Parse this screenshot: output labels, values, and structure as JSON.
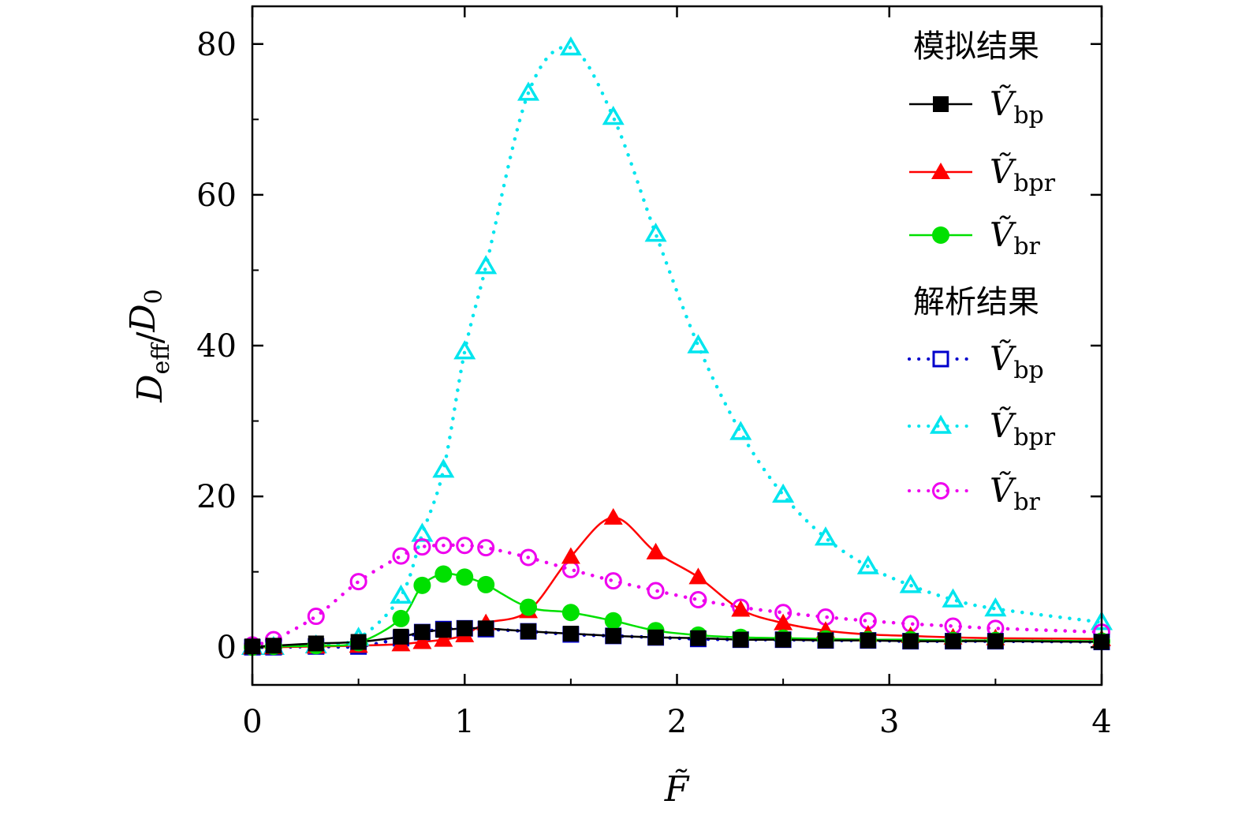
{
  "chart_data": {
    "type": "line",
    "xlim": [
      0,
      4
    ],
    "ylim": [
      -5,
      85
    ],
    "x_ticks": [
      "0",
      "1",
      "2",
      "3",
      "4"
    ],
    "y_ticks": [
      "0",
      "20",
      "40",
      "60",
      "80"
    ],
    "xlabel": "F̃",
    "ylabel": "D_eff/D_0",
    "ylabel_main": "D",
    "ylabel_sub1": "eff",
    "ylabel_sep": "/",
    "ylabel_sub2": "0",
    "legend_position": "top-right",
    "legend_groups": [
      {
        "heading": "模拟结果",
        "series_keys": [
          "sim_bp",
          "sim_bpr",
          "sim_br"
        ]
      },
      {
        "heading": "解析结果",
        "series_keys": [
          "ana_bp",
          "ana_bpr",
          "ana_br"
        ]
      }
    ],
    "series": [
      {
        "key": "sim_bp",
        "name": "Ṽbp",
        "label_var": "Ṽ",
        "label_sub": "bp",
        "color": "#000000",
        "marker": "square-filled",
        "line": "solid",
        "x": [
          0,
          0.1,
          0.3,
          0.5,
          0.7,
          0.8,
          0.9,
          1.0,
          1.1,
          1.3,
          1.5,
          1.7,
          1.9,
          2.1,
          2.3,
          2.5,
          2.7,
          2.9,
          3.1,
          3.3,
          3.5,
          4.0
        ],
        "y": [
          0.1,
          0.2,
          0.5,
          0.7,
          1.4,
          2.0,
          2.3,
          2.5,
          2.5,
          2.1,
          1.8,
          1.5,
          1.3,
          1.2,
          1.0,
          1.0,
          0.9,
          0.9,
          0.8,
          0.8,
          0.8,
          0.7
        ]
      },
      {
        "key": "sim_bpr",
        "name": "Ṽbpr",
        "label_var": "Ṽ",
        "label_sub": "bpr",
        "color": "#ff0000",
        "marker": "triangle-filled",
        "line": "solid",
        "x": [
          0,
          0.1,
          0.3,
          0.5,
          0.7,
          0.8,
          0.9,
          1.0,
          1.1,
          1.3,
          1.5,
          1.7,
          1.9,
          2.1,
          2.3,
          2.5,
          2.7,
          2.9,
          3.1,
          3.3,
          3.5,
          4.0
        ],
        "y": [
          0.0,
          0.0,
          0.1,
          0.2,
          0.4,
          0.7,
          1.0,
          1.6,
          3.2,
          4.8,
          12.0,
          17.2,
          12.6,
          9.3,
          5.0,
          3.2,
          2.2,
          1.7,
          1.5,
          1.3,
          1.2,
          1.1
        ]
      },
      {
        "key": "sim_br",
        "name": "Ṽbr",
        "label_var": "Ṽ",
        "label_sub": "br",
        "color": "#00e000",
        "marker": "circle-filled",
        "line": "solid",
        "x": [
          0,
          0.1,
          0.3,
          0.5,
          0.7,
          0.8,
          0.9,
          1.0,
          1.1,
          1.3,
          1.5,
          1.7,
          1.9,
          2.1,
          2.3,
          2.5,
          2.7,
          2.9,
          3.1,
          3.3,
          3.5,
          4.0
        ],
        "y": [
          0.0,
          0.1,
          0.2,
          0.6,
          3.8,
          8.2,
          9.7,
          9.3,
          8.3,
          5.3,
          4.6,
          3.5,
          2.2,
          1.6,
          1.3,
          1.2,
          1.1,
          1.0,
          1.0,
          0.9,
          0.9,
          0.8
        ]
      },
      {
        "key": "ana_bp",
        "name": "Ṽbp",
        "label_var": "Ṽ",
        "label_sub": "bp",
        "color": "#0000cc",
        "marker": "square-open",
        "line": "dotted",
        "x": [
          0,
          0.1,
          0.3,
          0.5,
          0.7,
          0.8,
          0.9,
          1.0,
          1.1,
          1.3,
          1.5,
          1.7,
          1.9,
          2.1,
          2.3,
          2.5,
          2.7,
          2.9,
          3.1,
          3.3,
          3.5,
          4.0
        ],
        "y": [
          0.0,
          0.0,
          0.1,
          0.1,
          1.2,
          2.0,
          2.4,
          2.5,
          2.4,
          2.1,
          1.7,
          1.5,
          1.3,
          1.1,
          1.0,
          1.0,
          0.9,
          0.9,
          0.8,
          0.8,
          0.8,
          0.7
        ]
      },
      {
        "key": "ana_bpr",
        "name": "Ṽbpr",
        "label_var": "Ṽ",
        "label_sub": "bpr",
        "color": "#00e5ee",
        "marker": "triangle-open",
        "line": "dotted",
        "x": [
          0,
          0.1,
          0.3,
          0.5,
          0.7,
          0.8,
          0.9,
          1.0,
          1.1,
          1.3,
          1.5,
          1.7,
          1.9,
          2.1,
          2.3,
          2.5,
          2.7,
          2.9,
          3.1,
          3.3,
          3.5,
          4.0
        ],
        "y": [
          0.0,
          0.0,
          0.2,
          1.2,
          6.8,
          15.0,
          23.5,
          39.2,
          50.5,
          73.5,
          79.5,
          70.3,
          54.8,
          40.0,
          28.5,
          20.2,
          14.5,
          10.7,
          8.2,
          6.3,
          5.1,
          3.3
        ]
      },
      {
        "key": "ana_br",
        "name": "Ṽbr",
        "label_var": "Ṽ",
        "label_sub": "br",
        "color": "#ee00ee",
        "marker": "circle-open",
        "line": "dotted",
        "x": [
          0,
          0.1,
          0.3,
          0.5,
          0.7,
          0.8,
          0.9,
          1.0,
          1.1,
          1.3,
          1.5,
          1.7,
          1.9,
          2.1,
          2.3,
          2.5,
          2.7,
          2.9,
          3.1,
          3.3,
          3.5,
          4.0
        ],
        "y": [
          0.3,
          1.0,
          4.1,
          8.7,
          12.1,
          13.3,
          13.5,
          13.5,
          13.2,
          11.9,
          10.3,
          8.8,
          7.5,
          6.3,
          5.3,
          4.6,
          4.0,
          3.5,
          3.1,
          2.8,
          2.5,
          2.0
        ]
      }
    ]
  }
}
